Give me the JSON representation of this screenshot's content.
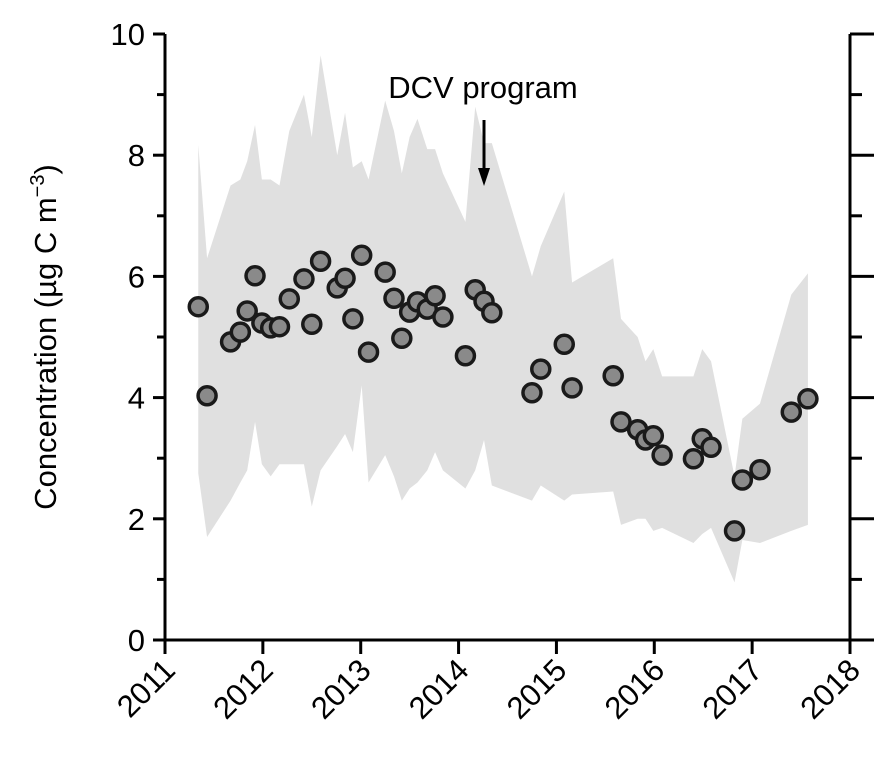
{
  "chart_data": {
    "type": "scatter",
    "ylabel": {
      "text": "Concentration (µg C m",
      "superscript": "−3",
      "suffix": ")"
    },
    "annotation": {
      "text": "DCV program",
      "x": 2014.26
    },
    "xlim": [
      2011,
      2018
    ],
    "xticks": [
      2011,
      2012,
      2013,
      2014,
      2015,
      2016,
      2017,
      2018
    ],
    "ylim": [
      0,
      10
    ],
    "yticks": [
      0,
      2,
      4,
      6,
      8,
      10
    ],
    "yminor_ticks": [
      1,
      3,
      5,
      7,
      9
    ],
    "marker_color": "#8a8a8a",
    "band_color": "#e0e0e0",
    "x": [
      2011.34,
      2011.43,
      2011.67,
      2011.77,
      2011.84,
      2011.92,
      2011.99,
      2012.08,
      2012.17,
      2012.27,
      2012.42,
      2012.5,
      2012.59,
      2012.76,
      2012.84,
      2012.92,
      2013.01,
      2013.08,
      2013.25,
      2013.34,
      2013.42,
      2013.5,
      2013.58,
      2013.68,
      2013.76,
      2013.84,
      2014.07,
      2014.17,
      2014.26,
      2014.34,
      2014.75,
      2014.84,
      2015.08,
      2015.16,
      2015.58,
      2015.66,
      2015.83,
      2015.91,
      2015.99,
      2016.08,
      2016.4,
      2016.49,
      2016.58,
      2016.82,
      2016.9,
      2017.08,
      2017.4,
      2017.57
    ],
    "values": [
      5.5,
      4.03,
      4.92,
      5.08,
      5.43,
      6.01,
      5.23,
      5.15,
      5.17,
      5.63,
      5.96,
      5.21,
      6.25,
      5.81,
      5.97,
      5.3,
      6.35,
      4.75,
      6.07,
      5.64,
      4.98,
      5.41,
      5.58,
      5.46,
      5.68,
      5.33,
      4.69,
      5.78,
      5.59,
      5.4,
      4.08,
      4.47,
      4.88,
      4.16,
      4.36,
      3.6,
      3.47,
      3.3,
      3.37,
      3.05,
      2.99,
      3.32,
      3.18,
      1.8,
      2.64,
      2.81,
      3.76,
      3.98
    ],
    "band_upper": [
      8.17,
      6.3,
      7.5,
      7.6,
      7.9,
      8.5,
      7.6,
      7.6,
      7.5,
      8.4,
      9.0,
      8.3,
      9.65,
      8.0,
      8.7,
      7.8,
      7.9,
      7.6,
      8.9,
      8.4,
      7.7,
      8.3,
      8.6,
      8.1,
      8.1,
      7.7,
      6.9,
      8.8,
      8.2,
      8.2,
      6.0,
      6.5,
      7.4,
      5.9,
      6.3,
      5.3,
      5.0,
      4.6,
      4.8,
      4.35,
      4.35,
      4.8,
      4.6,
      2.7,
      3.65,
      3.9,
      5.7,
      6.05
    ],
    "band_lower": [
      2.75,
      1.7,
      2.3,
      2.6,
      2.8,
      3.6,
      2.9,
      2.7,
      2.9,
      2.9,
      2.9,
      2.2,
      2.8,
      3.2,
      3.4,
      3.1,
      4.2,
      2.6,
      3.05,
      2.7,
      2.3,
      2.5,
      2.6,
      2.8,
      3.1,
      2.8,
      2.5,
      2.8,
      3.3,
      2.55,
      2.3,
      2.55,
      2.3,
      2.4,
      2.45,
      1.9,
      2.0,
      2.0,
      1.8,
      1.85,
      1.6,
      1.75,
      1.85,
      0.95,
      1.65,
      1.6,
      1.8,
      1.9
    ]
  }
}
